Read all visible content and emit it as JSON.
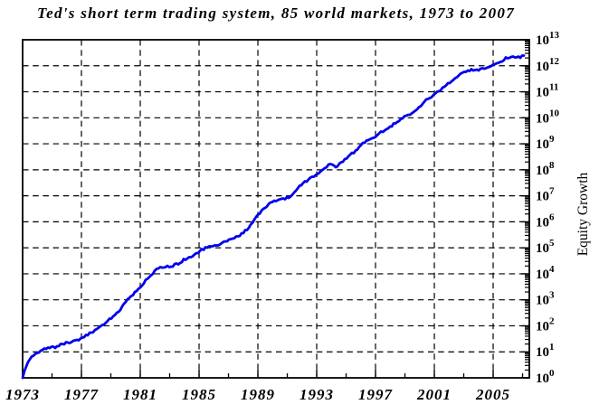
{
  "title": "Ted's short term trading system, 85 world markets, 1973 to 2007",
  "ylabel": "Equity Growth",
  "colors": {
    "line": "#0000ee",
    "axis": "#000000",
    "grid": "#000000",
    "text": "#000000",
    "background": "#ffffff"
  },
  "chart_data": {
    "type": "line",
    "title": "Ted's short term trading system, 85 world markets, 1973 to 2007",
    "xlabel": "",
    "ylabel": "Equity Growth",
    "legend": "none",
    "grid": "dashed black, vertical at labeled years, horizontal at each decade",
    "x_range": [
      1973,
      2007.46
    ],
    "y_scale": "log10",
    "y_exponent_range": [
      0,
      13
    ],
    "y_tick_base": "10",
    "y_tick_exponents": [
      0,
      1,
      2,
      3,
      4,
      5,
      6,
      7,
      8,
      9,
      10,
      11,
      12,
      13
    ],
    "x_major_ticks": [
      1973,
      1977,
      1981,
      1985,
      1989,
      1993,
      1997,
      2001,
      2005
    ],
    "x_major_labels": [
      "1973",
      "1977",
      "1981",
      "1985",
      "1989",
      "1993",
      "1997",
      "2001",
      "2005"
    ],
    "x_minor_ticks": [
      1975,
      1979,
      1983,
      1987,
      1991,
      1995,
      1999,
      2003,
      2007
    ],
    "series": [
      {
        "name": "Equity growth",
        "color": "#0000ee",
        "points_year_log10": [
          [
            1973.0,
            0.0
          ],
          [
            1973.15,
            0.3
          ],
          [
            1973.35,
            0.62
          ],
          [
            1973.6,
            0.8
          ],
          [
            1974.0,
            1.0
          ],
          [
            1974.5,
            1.12
          ],
          [
            1975.3,
            1.2
          ],
          [
            1975.8,
            1.32
          ],
          [
            1976.5,
            1.4
          ],
          [
            1977.0,
            1.5
          ],
          [
            1977.7,
            1.75
          ],
          [
            1978.35,
            2.0
          ],
          [
            1979.5,
            2.5
          ],
          [
            1980.1,
            3.0
          ],
          [
            1980.6,
            3.25
          ],
          [
            1981.0,
            3.5
          ],
          [
            1981.7,
            3.95
          ],
          [
            1982.3,
            4.25
          ],
          [
            1983.5,
            4.35
          ],
          [
            1984.0,
            4.55
          ],
          [
            1984.6,
            4.72
          ],
          [
            1985.0,
            4.85
          ],
          [
            1985.5,
            5.02
          ],
          [
            1986.3,
            5.1
          ],
          [
            1987.0,
            5.3
          ],
          [
            1987.7,
            5.45
          ],
          [
            1988.3,
            5.7
          ],
          [
            1989.0,
            6.3
          ],
          [
            1989.8,
            6.7
          ],
          [
            1990.4,
            6.85
          ],
          [
            1991.2,
            6.95
          ],
          [
            1992.0,
            7.45
          ],
          [
            1992.8,
            7.75
          ],
          [
            1993.5,
            8.0
          ],
          [
            1993.9,
            8.25
          ],
          [
            1994.3,
            8.1
          ],
          [
            1994.9,
            8.4
          ],
          [
            1995.5,
            8.65
          ],
          [
            1996.2,
            9.05
          ],
          [
            1997.0,
            9.3
          ],
          [
            1998.0,
            9.65
          ],
          [
            1998.8,
            10.0
          ],
          [
            1999.5,
            10.15
          ],
          [
            2000.3,
            10.6
          ],
          [
            2001.0,
            10.9
          ],
          [
            2001.6,
            11.15
          ],
          [
            2002.2,
            11.4
          ],
          [
            2002.8,
            11.7
          ],
          [
            2003.3,
            11.82
          ],
          [
            2004.2,
            11.85
          ],
          [
            2004.8,
            11.95
          ],
          [
            2005.3,
            12.1
          ],
          [
            2005.9,
            12.28
          ],
          [
            2006.4,
            12.38
          ],
          [
            2006.8,
            12.3
          ],
          [
            2007.0,
            12.42
          ],
          [
            2007.2,
            12.45
          ]
        ]
      }
    ]
  }
}
